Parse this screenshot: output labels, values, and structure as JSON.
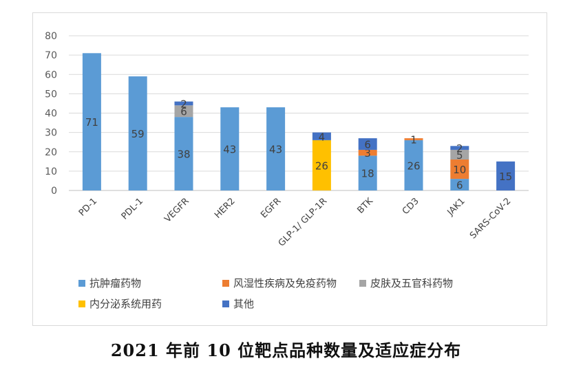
{
  "caption": "2021 年前 10 位靶点品种数量及适应症分布",
  "chart_data": {
    "type": "bar",
    "stacked": true,
    "categories": [
      "PD-1",
      "PDL-1",
      "VEGFR",
      "HER2",
      "EGFR",
      "GLP-1/ GLP-1R",
      "BTK",
      "CD3",
      "JAK1",
      "SARS-CoV-2"
    ],
    "series": [
      {
        "name": "抗肿瘤药物",
        "color": "#5b9bd5",
        "values": [
          71,
          59,
          38,
          43,
          43,
          0,
          18,
          26,
          6,
          0
        ]
      },
      {
        "name": "风湿性疾病及免疫药物",
        "color": "#ed7d31",
        "values": [
          0,
          0,
          0,
          0,
          0,
          0,
          3,
          1,
          10,
          0
        ]
      },
      {
        "name": "皮肤及五官科药物",
        "color": "#a5a5a5",
        "values": [
          0,
          0,
          6,
          0,
          0,
          0,
          0,
          0,
          5,
          0
        ]
      },
      {
        "name": "内分泌系统用药",
        "color": "#ffc000",
        "values": [
          0,
          0,
          0,
          0,
          0,
          26,
          0,
          0,
          0,
          0
        ]
      },
      {
        "name": "其他",
        "color": "#4472c4",
        "values": [
          0,
          0,
          2,
          0,
          0,
          4,
          6,
          0,
          2,
          15
        ]
      }
    ],
    "ylim": [
      0,
      80
    ],
    "yticks": [
      "0",
      "10",
      "20",
      "30",
      "40",
      "50",
      "60",
      "70",
      "80"
    ],
    "grid": true,
    "legend_position": "bottom"
  }
}
